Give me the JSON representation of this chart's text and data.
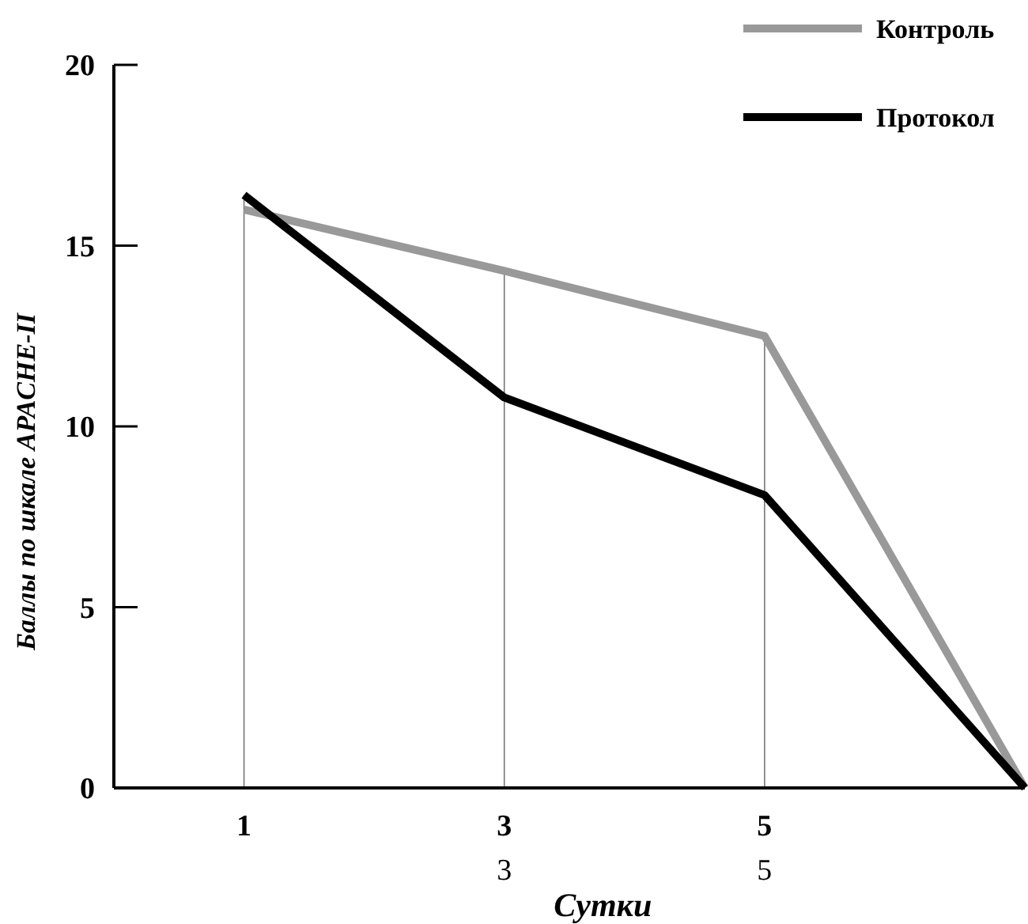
{
  "chart_data": {
    "type": "line",
    "xlabel": "Сутки",
    "ylabel": "Баллы по шкале APACHE-II",
    "categories": [
      "1",
      "3",
      "5",
      null
    ],
    "series": [
      {
        "name": "Контроль",
        "color": "#999999",
        "values": [
          16.0,
          14.3,
          12.5,
          0
        ]
      },
      {
        "name": "Протокол",
        "color": "#000000",
        "values": [
          16.4,
          10.8,
          8.1,
          0
        ]
      }
    ],
    "ylim": [
      0,
      20
    ],
    "yticks": [
      0,
      5,
      10,
      15,
      20
    ],
    "grid": "x",
    "legend": "top right",
    "marker": "none",
    "line_style": "solid",
    "annotations": [
      "3",
      "5"
    ]
  }
}
